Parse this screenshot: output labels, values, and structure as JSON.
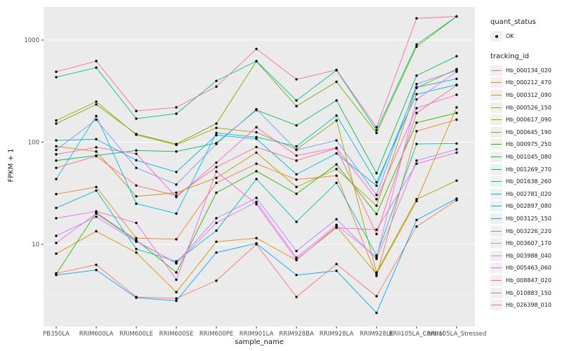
{
  "chart_data": {
    "type": "line",
    "title": "",
    "xlabel": "sample_name",
    "ylabel": "FPKM + 1",
    "y_scale": "log10",
    "y_ticks": [
      10,
      100,
      1000
    ],
    "ylim": [
      1.57,
      2100
    ],
    "grid": true,
    "legend_position": "right",
    "point_marker": "black-dot",
    "x_categories": [
      "PB350LA",
      "RRIM600LA",
      "RRIM600LE",
      "RRIM600SE",
      "RRIM600PE",
      "RRIM901LA",
      "RRIM928BA",
      "RRIM928LA",
      "RRIM928LE",
      "RRII105LA_Control",
      "RRII105LA_Stressed"
    ],
    "quant_status_legend": {
      "title": "quant_status",
      "entries": [
        {
          "label": "OK"
        }
      ]
    },
    "series_legend_title": "tracking_id",
    "series": [
      {
        "name": "Hb_000134_020",
        "color": "#F8766D",
        "values": [
          5.2,
          6.3,
          3.05,
          2.95,
          4.4,
          10,
          3.05,
          6.4,
          3.1,
          14.9,
          27
        ]
      },
      {
        "name": "Hb_000212_470",
        "color": "#E9842C",
        "values": [
          31,
          36.4,
          11.5,
          11.2,
          40,
          61.5,
          43,
          47,
          4.9,
          128,
          166
        ]
      },
      {
        "name": "Hb_000312_090",
        "color": "#D69100",
        "values": [
          8.1,
          13.4,
          8.3,
          3.4,
          10.6,
          11.5,
          7.0,
          15,
          5.1,
          26.5,
          219
        ]
      },
      {
        "name": "Hb_000526_150",
        "color": "#BC9D00",
        "values": [
          91,
          81,
          29.5,
          32,
          44.7,
          79,
          36.4,
          54.5,
          23.9,
          340,
          520
        ]
      },
      {
        "name": "Hb_000617_090",
        "color": "#9CA700",
        "values": [
          163,
          249,
          118,
          94,
          138,
          125,
          85,
          163,
          5.3,
          27.6,
          42
        ]
      },
      {
        "name": "Hb_000645_190",
        "color": "#6FB000",
        "values": [
          152,
          234,
          120,
          96,
          152,
          618,
          225,
          390,
          123,
          860,
          1700
        ]
      },
      {
        "name": "Hb_000975_250",
        "color": "#2CB600",
        "values": [
          5.1,
          20.4,
          11,
          5.3,
          32,
          52,
          31.2,
          60.5,
          19.8,
          155,
          193
        ]
      },
      {
        "name": "Hb_001045_080",
        "color": "#00BC51",
        "values": [
          66,
          74,
          83,
          81,
          98,
          206,
          146,
          256,
          49.7,
          448,
          694
        ]
      },
      {
        "name": "Hb_001269_270",
        "color": "#00C08D",
        "values": [
          433,
          537,
          170,
          190,
          398,
          622,
          256,
          505,
          131,
          905,
          1700
        ]
      },
      {
        "name": "Hb_001638_260",
        "color": "#00C1B2",
        "values": [
          22.7,
          33.6,
          9.0,
          6.8,
          13.6,
          43.5,
          16.6,
          40,
          7.8,
          96,
          97
        ]
      },
      {
        "name": "Hb_002781_020",
        "color": "#00BDD4",
        "values": [
          43.5,
          180,
          25,
          20,
          123,
          112,
          91,
          182,
          40.5,
          295,
          365
        ]
      },
      {
        "name": "Hb_002897_080",
        "color": "#00B5EC",
        "values": [
          104,
          107,
          66.5,
          51,
          117,
          108,
          48.4,
          77.5,
          37.5,
          345,
          417
        ]
      },
      {
        "name": "Hb_003125_150",
        "color": "#00A7FF",
        "values": [
          5.0,
          5.6,
          3.0,
          2.8,
          8.3,
          10.2,
          5.0,
          5.5,
          2.13,
          17.3,
          28
        ]
      },
      {
        "name": "Hb_003226_220",
        "color": "#7997FF",
        "values": [
          84,
          166,
          56,
          38.5,
          96,
          210,
          84,
          104,
          30.5,
          370,
          505
        ]
      },
      {
        "name": "Hb_003607_170",
        "color": "#B983FF",
        "values": [
          12.1,
          18.6,
          10.6,
          6.6,
          18,
          28.5,
          8.6,
          17.6,
          7.2,
          66,
          85
        ]
      },
      {
        "name": "Hb_003988_040",
        "color": "#E076F5",
        "values": [
          10.3,
          20,
          10.8,
          6.5,
          16.2,
          26,
          7.4,
          15.5,
          7.5,
          262,
          490
        ]
      },
      {
        "name": "Hb_005463_060",
        "color": "#F763DF",
        "values": [
          18,
          21,
          16.2,
          4.5,
          51.5,
          24.7,
          7.1,
          14.5,
          13.9,
          61.5,
          79
        ]
      },
      {
        "name": "Hb_008847_020",
        "color": "#FF61C7",
        "values": [
          76,
          89,
          77,
          29,
          63,
          140,
          74,
          88,
          27.6,
          215,
          291
        ]
      },
      {
        "name": "Hb_010883_150",
        "color": "#FF689E",
        "values": [
          489,
          622,
          202,
          219,
          350,
          818,
          412,
          510,
          140,
          1630,
          1700
        ]
      },
      {
        "name": "Hb_026398_010",
        "color": "#FF6884",
        "values": [
          56,
          73,
          37.6,
          30,
          57,
          89.5,
          66,
          87,
          12.6,
          193,
          360
        ]
      }
    ],
    "style": {
      "panel_bg": "#EBEBEB",
      "grid_major": "#FFFFFF",
      "grid_minor": "#F5F5F5",
      "point_color": "#000000",
      "tick_text_color": "#4D4D4D",
      "axis_title_color": "#1A1A1A"
    }
  }
}
